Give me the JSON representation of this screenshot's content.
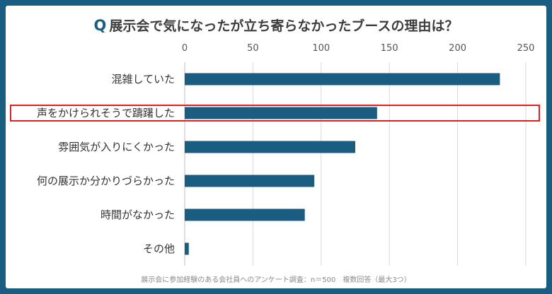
{
  "title": {
    "prefix": "Q",
    "text": "展示会で気になったが立ち寄らなかったブースの理由は？"
  },
  "footnote": "展示会に参加経験のある会社員へのアンケート調査：n＝500　複数回答（最大3つ）",
  "colors": {
    "frame": "#1a5d80",
    "bar": "#1a5d80",
    "highlight": "#e02020",
    "grid": "#d9d9d9"
  },
  "chart_data": {
    "type": "bar",
    "orientation": "horizontal",
    "categories": [
      "混雑していた",
      "声をかけられそうで躊躇した",
      "雰囲気が入りにくかった",
      "何の展示か分かりづらかった",
      "時間がなかった",
      "その他"
    ],
    "values": [
      231,
      141,
      125,
      95,
      88,
      3
    ],
    "xlim": [
      0,
      250
    ],
    "xticks": [
      0,
      50,
      100,
      150,
      200,
      250
    ],
    "axis_position": "top",
    "grid": true,
    "highlighted_category_index": 1
  }
}
